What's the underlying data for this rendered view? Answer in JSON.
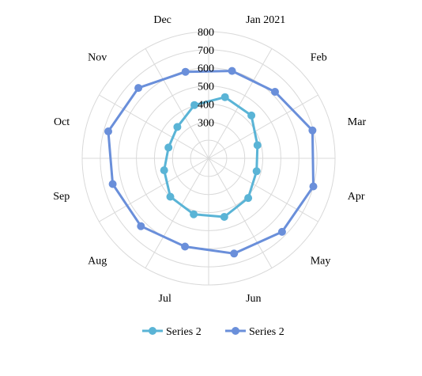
{
  "chart_data": {
    "type": "radar",
    "categories": [
      "Jan 2021",
      "Feb",
      "Mar",
      "Apr",
      "May",
      "Jun",
      "Jul",
      "Aug",
      "Sep",
      "Oct",
      "Nov",
      "Dec"
    ],
    "rlim": [
      100,
      800
    ],
    "rticks": [
      300,
      400,
      500,
      600,
      700,
      800
    ],
    "rtick_labels": [
      "300",
      "400",
      "500",
      "600",
      "700",
      "800"
    ],
    "series": [
      {
        "name": "Series 2",
        "color": "#5ab4d6",
        "values": [
          450,
          435,
          380,
          375,
          410,
          435,
          420,
          400,
          355,
          330,
          345,
          405
        ]
      },
      {
        "name": "Series 2",
        "color": "#6a8fda",
        "values": [
          600,
          620,
          695,
          700,
          675,
          645,
          605,
          630,
          650,
          675,
          650,
          595
        ]
      }
    ],
    "grid": true,
    "legend": "bottom"
  }
}
